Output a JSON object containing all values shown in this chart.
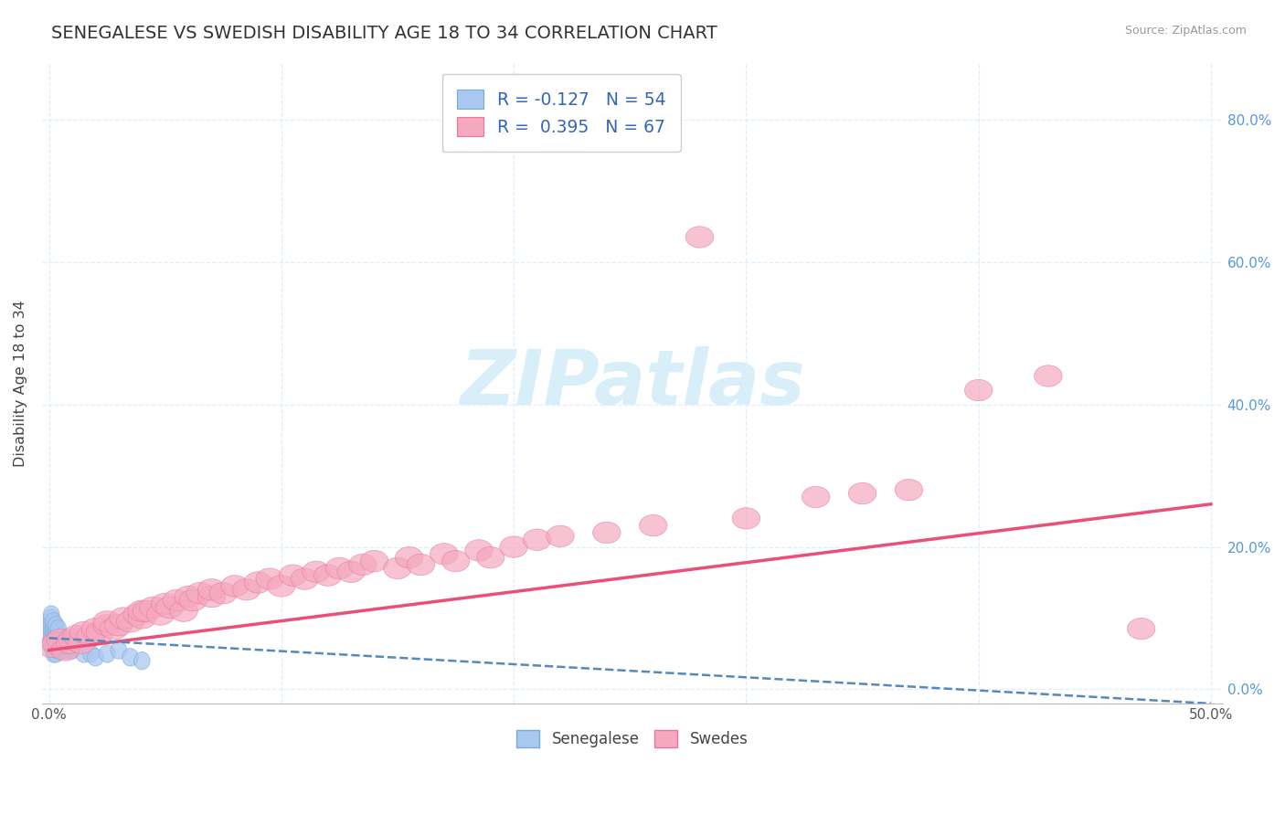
{
  "title": "SENEGALESE VS SWEDISH DISABILITY AGE 18 TO 34 CORRELATION CHART",
  "source": "Source: ZipAtlas.com",
  "ylabel": "Disability Age 18 to 34",
  "xlim": [
    -0.003,
    0.505
  ],
  "ylim": [
    -0.02,
    0.88
  ],
  "xticks": [
    0.0,
    0.1,
    0.2,
    0.3,
    0.4,
    0.5
  ],
  "xtick_labels": [
    "0.0%",
    "",
    "",
    "",
    "",
    "50.0%"
  ],
  "yticks": [
    0.0,
    0.2,
    0.4,
    0.6,
    0.8
  ],
  "ytick_labels": [
    "0.0%",
    "20.0%",
    "40.0%",
    "60.0%",
    "80.0%"
  ],
  "legend_r_blue": "-0.127",
  "legend_n_blue": "54",
  "legend_r_pink": "0.395",
  "legend_n_pink": "67",
  "blue_color": "#A8C8F0",
  "pink_color": "#F5A8C0",
  "blue_edge_color": "#7AAAD8",
  "pink_edge_color": "#E87898",
  "blue_line_color": "#5588BB",
  "pink_line_color": "#E8507A",
  "grid_color": "#DDEEFF",
  "watermark_color": "#D8EEF8",
  "blue_x": [
    0.001,
    0.001,
    0.001,
    0.001,
    0.001,
    0.001,
    0.001,
    0.001,
    0.002,
    0.002,
    0.002,
    0.002,
    0.002,
    0.002,
    0.002,
    0.002,
    0.002,
    0.003,
    0.003,
    0.003,
    0.003,
    0.003,
    0.003,
    0.004,
    0.004,
    0.004,
    0.004,
    0.004,
    0.005,
    0.005,
    0.005,
    0.005,
    0.006,
    0.006,
    0.006,
    0.007,
    0.007,
    0.008,
    0.008,
    0.009,
    0.01,
    0.01,
    0.015,
    0.018,
    0.02,
    0.025,
    0.03,
    0.035,
    0.04,
    0.001,
    0.001,
    0.002,
    0.003,
    0.004
  ],
  "blue_y": [
    0.06,
    0.065,
    0.07,
    0.075,
    0.08,
    0.085,
    0.09,
    0.095,
    0.05,
    0.055,
    0.06,
    0.065,
    0.07,
    0.075,
    0.08,
    0.085,
    0.09,
    0.05,
    0.06,
    0.065,
    0.07,
    0.075,
    0.08,
    0.055,
    0.06,
    0.065,
    0.07,
    0.075,
    0.06,
    0.065,
    0.07,
    0.075,
    0.055,
    0.06,
    0.065,
    0.06,
    0.065,
    0.055,
    0.06,
    0.06,
    0.055,
    0.06,
    0.05,
    0.05,
    0.045,
    0.05,
    0.055,
    0.045,
    0.04,
    0.1,
    0.105,
    0.095,
    0.09,
    0.085
  ],
  "pink_x": [
    0.001,
    0.003,
    0.005,
    0.007,
    0.009,
    0.01,
    0.012,
    0.014,
    0.015,
    0.018,
    0.02,
    0.022,
    0.025,
    0.025,
    0.028,
    0.03,
    0.032,
    0.035,
    0.038,
    0.04,
    0.04,
    0.042,
    0.045,
    0.048,
    0.05,
    0.052,
    0.055,
    0.058,
    0.06,
    0.062,
    0.065,
    0.07,
    0.07,
    0.075,
    0.08,
    0.085,
    0.09,
    0.095,
    0.1,
    0.105,
    0.11,
    0.115,
    0.12,
    0.125,
    0.13,
    0.135,
    0.14,
    0.15,
    0.155,
    0.16,
    0.17,
    0.175,
    0.185,
    0.19,
    0.2,
    0.21,
    0.22,
    0.24,
    0.26,
    0.28,
    0.3,
    0.33,
    0.35,
    0.37,
    0.4,
    0.43,
    0.47
  ],
  "pink_y": [
    0.06,
    0.065,
    0.07,
    0.055,
    0.065,
    0.07,
    0.075,
    0.065,
    0.08,
    0.075,
    0.085,
    0.08,
    0.09,
    0.095,
    0.085,
    0.09,
    0.1,
    0.095,
    0.105,
    0.1,
    0.11,
    0.11,
    0.115,
    0.105,
    0.12,
    0.115,
    0.125,
    0.11,
    0.13,
    0.125,
    0.135,
    0.13,
    0.14,
    0.135,
    0.145,
    0.14,
    0.15,
    0.155,
    0.145,
    0.16,
    0.155,
    0.165,
    0.16,
    0.17,
    0.165,
    0.175,
    0.18,
    0.17,
    0.185,
    0.175,
    0.19,
    0.18,
    0.195,
    0.185,
    0.2,
    0.21,
    0.215,
    0.22,
    0.23,
    0.635,
    0.24,
    0.27,
    0.275,
    0.28,
    0.42,
    0.44,
    0.085
  ],
  "pink_line_x0": 0.0,
  "pink_line_x1": 0.5,
  "pink_line_y0": 0.055,
  "pink_line_y1": 0.26,
  "blue_line_x0": 0.0,
  "blue_line_x1": 0.5,
  "blue_line_y0": 0.072,
  "blue_line_y1": -0.02
}
